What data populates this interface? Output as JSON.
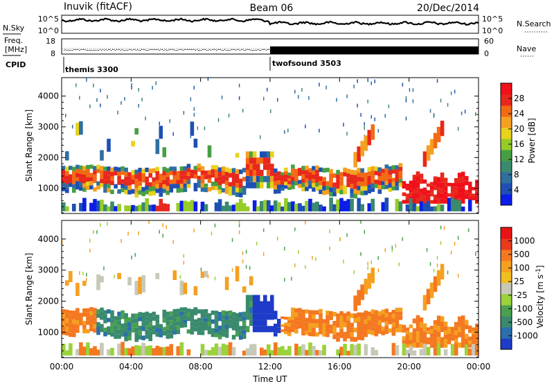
{
  "header": {
    "station": "Inuvik (fitACF)",
    "beam": "Beam 06",
    "date": "20/Dec/2014"
  },
  "top_panels": {
    "nsky": {
      "label": "N.Sky",
      "ticks": [
        "10^5",
        "10^0"
      ]
    },
    "nsearch": {
      "label": "N.Search",
      "ticks": [
        "10^5",
        "10^0"
      ]
    },
    "freq": {
      "label_line1": "Freq.",
      "label_line2": "[MHz]",
      "ticks": [
        "18",
        "8"
      ]
    },
    "nave": {
      "label": "Nave",
      "ticks": [
        "60",
        "0"
      ]
    },
    "cpid": {
      "label": "CPID",
      "modes": [
        {
          "name": "themis 3300",
          "start_hour": 0
        },
        {
          "name": "twofsound 3503",
          "start_hour": 12
        }
      ]
    }
  },
  "chart_data": [
    {
      "type": "heatmap",
      "name": "power",
      "ylabel": "Slant Range [km]",
      "yticks": [
        1000,
        2000,
        3000,
        4000
      ],
      "ylim": [
        180,
        4600
      ],
      "xlim": [
        0,
        24
      ],
      "xticks": [
        "00:00",
        "04:00",
        "08:00",
        "12:00",
        "16:00",
        "20:00",
        "00:00"
      ],
      "colorbar": {
        "label": "Power [dB]",
        "ticks": [
          "4",
          "8",
          "12",
          "16",
          "20",
          "24",
          "28"
        ],
        "colors": [
          "#0a1ee8",
          "#1e50b4",
          "#2f6fa0",
          "#3a8a6e",
          "#46a043",
          "#96cc28",
          "#e8d21c",
          "#f5a020",
          "#f36a14",
          "#e8281c",
          "#f0101a"
        ]
      }
    },
    {
      "type": "heatmap",
      "name": "velocity",
      "ylabel": "Slant Range [km]",
      "yticks": [
        1000,
        2000,
        3000,
        4000
      ],
      "ylim": [
        180,
        4600
      ],
      "xlim": [
        0,
        24
      ],
      "xticks": [
        "00:00",
        "04:00",
        "08:00",
        "12:00",
        "16:00",
        "20:00",
        "00:00"
      ],
      "xlabel": "Time UT",
      "colorbar": {
        "label": "Velocity [m s",
        "label_sup": "-1",
        "label_end": "]",
        "ticks": [
          "1000",
          "500",
          "100",
          "25",
          "-25",
          "-100",
          "-500",
          "-1000"
        ],
        "colors": [
          "#1e3cc8",
          "#2a6fae",
          "#3a8a6e",
          "#4aa050",
          "#9ad23a",
          "#c8c8b8",
          "#f0c020",
          "#f5a020",
          "#f47820",
          "#e83a1c",
          "#e81414"
        ]
      }
    }
  ]
}
